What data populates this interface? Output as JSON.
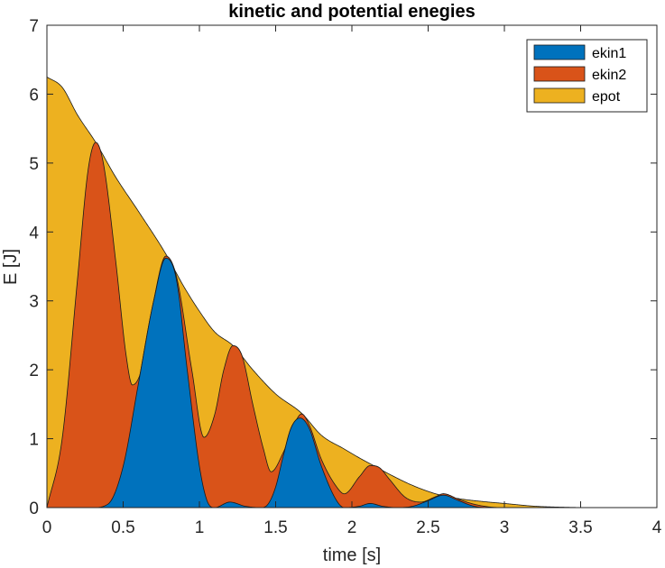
{
  "chart_data": {
    "type": "area",
    "stacked": true,
    "title": "kinetic and potential enegies",
    "xlabel": "time [s]",
    "ylabel": "E [J]",
    "xlim": [
      0,
      4
    ],
    "ylim": [
      0,
      7
    ],
    "xticks": [
      0,
      0.5,
      1,
      1.5,
      2,
      2.5,
      3,
      3.5,
      4
    ],
    "xtick_labels": [
      "0",
      "0.5",
      "1",
      "1.5",
      "2",
      "2.5",
      "3",
      "3.5",
      "4"
    ],
    "yticks": [
      0,
      1,
      2,
      3,
      4,
      5,
      6,
      7
    ],
    "ytick_labels": [
      "0",
      "1",
      "2",
      "3",
      "4",
      "5",
      "6",
      "7"
    ],
    "grid": false,
    "legend": "top-right",
    "series": [
      {
        "name": "ekin1",
        "color": "#0072BD",
        "points": [
          [
            0,
            0
          ],
          [
            0.3,
            0
          ],
          [
            0.4,
            0.05
          ],
          [
            0.5,
            0.6
          ],
          [
            0.6,
            1.8
          ],
          [
            0.7,
            3.0
          ],
          [
            0.78,
            3.62
          ],
          [
            0.85,
            3.3
          ],
          [
            0.92,
            2.0
          ],
          [
            1.0,
            0.6
          ],
          [
            1.05,
            0.1
          ],
          [
            1.1,
            0.0
          ],
          [
            1.2,
            0.08
          ],
          [
            1.3,
            0.02
          ],
          [
            1.4,
            0.0
          ],
          [
            1.45,
            0.05
          ],
          [
            1.5,
            0.3
          ],
          [
            1.55,
            0.75
          ],
          [
            1.6,
            1.15
          ],
          [
            1.66,
            1.3
          ],
          [
            1.72,
            1.15
          ],
          [
            1.8,
            0.6
          ],
          [
            1.9,
            0.1
          ],
          [
            1.95,
            0.0
          ],
          [
            2.05,
            0.02
          ],
          [
            2.12,
            0.06
          ],
          [
            2.2,
            0.02
          ],
          [
            2.3,
            0.0
          ],
          [
            2.4,
            0.02
          ],
          [
            2.5,
            0.1
          ],
          [
            2.6,
            0.18
          ],
          [
            2.7,
            0.1
          ],
          [
            2.8,
            0.02
          ],
          [
            2.9,
            0.0
          ],
          [
            4.0,
            0.0
          ]
        ]
      },
      {
        "name": "ekin2",
        "color": "#D95319",
        "points": [
          [
            0,
            0
          ],
          [
            0.1,
            1.0
          ],
          [
            0.2,
            3.3
          ],
          [
            0.27,
            4.9
          ],
          [
            0.32,
            5.3
          ],
          [
            0.37,
            5.0
          ],
          [
            0.45,
            3.6
          ],
          [
            0.52,
            2.2
          ],
          [
            0.56,
            1.78
          ],
          [
            0.62,
            2.0
          ],
          [
            0.7,
            3.0
          ],
          [
            0.78,
            3.65
          ],
          [
            0.85,
            3.35
          ],
          [
            0.95,
            2.0
          ],
          [
            1.03,
            1.02
          ],
          [
            1.1,
            1.35
          ],
          [
            1.16,
            2.0
          ],
          [
            1.22,
            2.35
          ],
          [
            1.28,
            2.2
          ],
          [
            1.35,
            1.5
          ],
          [
            1.42,
            0.85
          ],
          [
            1.47,
            0.52
          ],
          [
            1.55,
            0.8
          ],
          [
            1.62,
            1.2
          ],
          [
            1.67,
            1.36
          ],
          [
            1.72,
            1.2
          ],
          [
            1.8,
            0.7
          ],
          [
            1.9,
            0.3
          ],
          [
            1.95,
            0.2
          ],
          [
            2.05,
            0.45
          ],
          [
            2.12,
            0.61
          ],
          [
            2.18,
            0.58
          ],
          [
            2.25,
            0.4
          ],
          [
            2.35,
            0.15
          ],
          [
            2.45,
            0.08
          ],
          [
            2.55,
            0.16
          ],
          [
            2.6,
            0.2
          ],
          [
            2.7,
            0.12
          ],
          [
            2.8,
            0.05
          ],
          [
            2.9,
            0.01
          ],
          [
            3.0,
            0.0
          ],
          [
            4.0,
            0.0
          ]
        ]
      },
      {
        "name": "epot",
        "color": "#EDB120",
        "points": [
          [
            0,
            6.25
          ],
          [
            0.1,
            6.1
          ],
          [
            0.2,
            5.7
          ],
          [
            0.32,
            5.3
          ],
          [
            0.45,
            4.8
          ],
          [
            0.6,
            4.3
          ],
          [
            0.78,
            3.68
          ],
          [
            0.9,
            3.2
          ],
          [
            1.0,
            2.85
          ],
          [
            1.1,
            2.55
          ],
          [
            1.22,
            2.35
          ],
          [
            1.35,
            2.0
          ],
          [
            1.5,
            1.65
          ],
          [
            1.67,
            1.37
          ],
          [
            1.8,
            1.05
          ],
          [
            1.95,
            0.85
          ],
          [
            2.05,
            0.72
          ],
          [
            2.15,
            0.6
          ],
          [
            2.25,
            0.48
          ],
          [
            2.4,
            0.32
          ],
          [
            2.55,
            0.2
          ],
          [
            2.7,
            0.13
          ],
          [
            2.85,
            0.09
          ],
          [
            3.0,
            0.06
          ],
          [
            3.2,
            0.02
          ],
          [
            3.4,
            0.005
          ],
          [
            3.6,
            0.0
          ],
          [
            4.0,
            0.0
          ]
        ]
      }
    ]
  }
}
